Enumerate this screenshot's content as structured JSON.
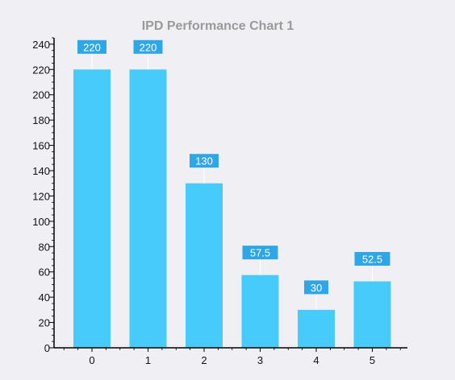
{
  "chart_data": {
    "type": "bar",
    "title": "IPD Performance Chart 1",
    "categories": [
      "0",
      "1",
      "2",
      "3",
      "4",
      "5"
    ],
    "values": [
      220,
      220,
      130,
      57.5,
      30,
      52.5
    ],
    "data_labels": [
      "220",
      "220",
      "130",
      "57.5",
      "30",
      "52.5"
    ],
    "ylim": [
      0,
      245
    ],
    "yticks": [
      0,
      20,
      40,
      60,
      80,
      100,
      120,
      140,
      160,
      180,
      200,
      220,
      240
    ],
    "ytick_labels": [
      "0",
      "20",
      "40",
      "60",
      "80",
      "100",
      "120",
      "140",
      "160",
      "180",
      "200",
      "220",
      "240"
    ],
    "grid": false,
    "colors": {
      "bar": "#47cbfb",
      "data_label_bg": "#2fa6e6",
      "data_label_text": "#ffffff",
      "axis": "#000000",
      "title": "#9a9a9a",
      "background": "#f0eff4"
    }
  }
}
